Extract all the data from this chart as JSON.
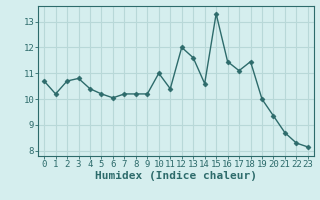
{
  "x": [
    0,
    1,
    2,
    3,
    4,
    5,
    6,
    7,
    8,
    9,
    10,
    11,
    12,
    13,
    14,
    15,
    16,
    17,
    18,
    19,
    20,
    21,
    22,
    23
  ],
  "y": [
    10.7,
    10.2,
    10.7,
    10.8,
    10.4,
    10.2,
    10.05,
    10.2,
    10.2,
    10.2,
    11.0,
    10.4,
    12.0,
    11.6,
    10.6,
    13.3,
    11.45,
    11.1,
    11.45,
    10.0,
    9.35,
    8.7,
    8.3,
    8.15
  ],
  "xlabel": "Humidex (Indice chaleur)",
  "xlim_min": -0.5,
  "xlim_max": 23.5,
  "ylim_min": 7.8,
  "ylim_max": 13.6,
  "yticks": [
    8,
    9,
    10,
    11,
    12,
    13
  ],
  "xticks": [
    0,
    1,
    2,
    3,
    4,
    5,
    6,
    7,
    8,
    9,
    10,
    11,
    12,
    13,
    14,
    15,
    16,
    17,
    18,
    19,
    20,
    21,
    22,
    23
  ],
  "line_color": "#2d6b6b",
  "marker_color": "#2d6b6b",
  "bg_color": "#d5eeee",
  "grid_color": "#b8d8d8",
  "spine_color": "#2d6b6b",
  "tick_color": "#2d6b6b",
  "xlabel_color": "#2d6b6b",
  "tick_fontsize": 6.5,
  "xlabel_fontsize": 8.0,
  "linewidth": 1.0,
  "marker_size": 2.5
}
